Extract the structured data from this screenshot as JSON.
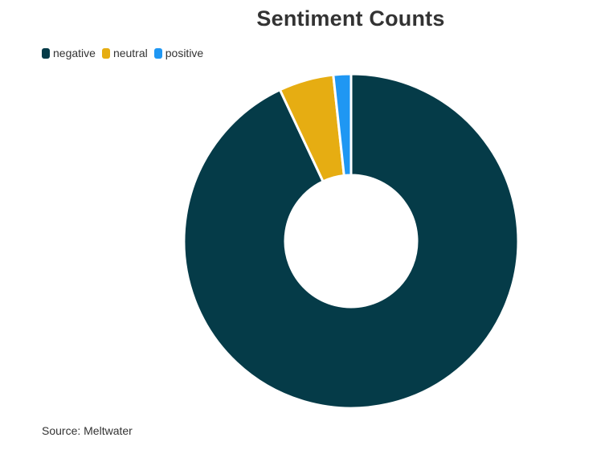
{
  "chart_data": {
    "type": "pie",
    "variant": "donut",
    "title": "Sentiment Counts",
    "categories": [
      "negative",
      "neutral",
      "positive"
    ],
    "values": [
      93,
      5.3,
      1.7
    ],
    "colors": [
      "#053b48",
      "#e6ad12",
      "#1f97f3"
    ],
    "legend_position": "top-left",
    "source": "Source: Meltwater"
  }
}
